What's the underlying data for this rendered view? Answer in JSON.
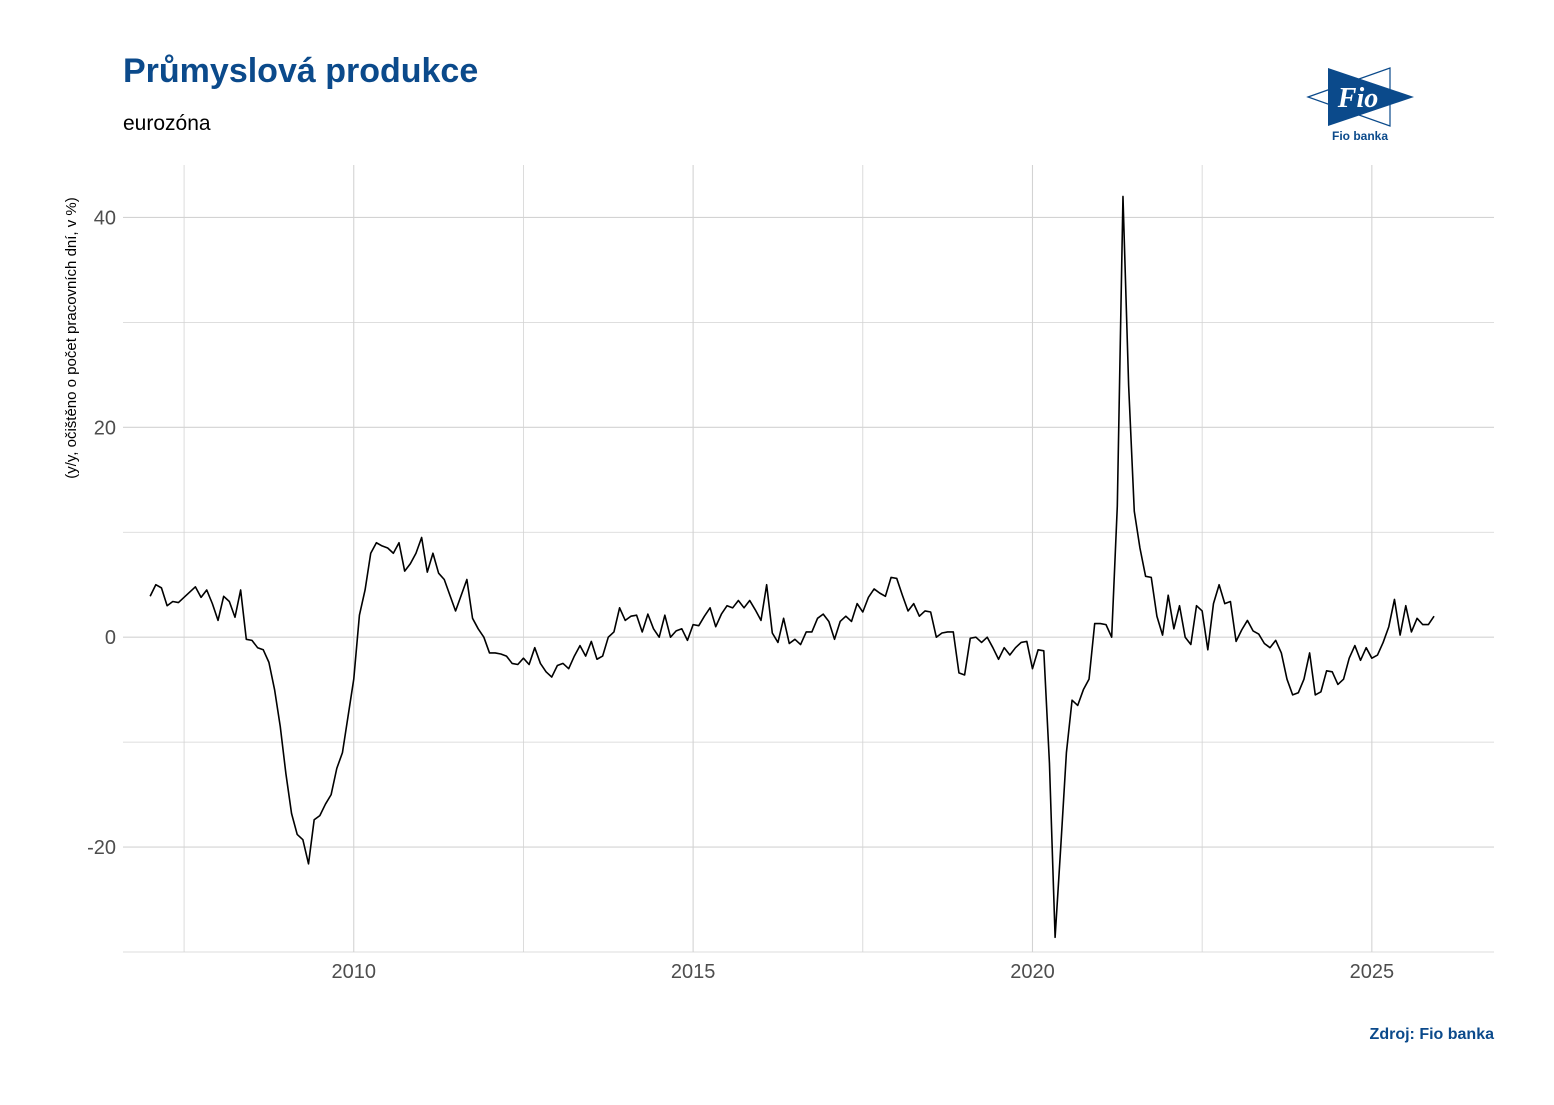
{
  "header": {
    "title": "Průmyslová produkce",
    "subtitle": "eurozóna"
  },
  "logo": {
    "mark_text": "Fio",
    "caption": "Fio banka",
    "color": "#0b4a8b"
  },
  "footer": {
    "source": "Zdroj: Fio banka"
  },
  "chart_data": {
    "type": "line",
    "title": "Průmyslová produkce",
    "subtitle": "eurozóna",
    "xlabel": "",
    "ylabel": "(y/y, očištěno o počet pracovních dní, v %)",
    "xlim": [
      2006.6,
      2026.8
    ],
    "ylim": [
      -30,
      45
    ],
    "x_ticks": [
      2010,
      2015,
      2020,
      2025
    ],
    "y_ticks": [
      -20,
      0,
      20,
      40
    ],
    "grid": true,
    "line_color": "#000000",
    "series": [
      {
        "start": "2007-01",
        "frequency": "monthly",
        "values": [
          3.9,
          5.0,
          4.7,
          3.0,
          3.4,
          3.3,
          3.8,
          4.3,
          4.8,
          3.8,
          4.5,
          3.2,
          1.6,
          3.9,
          3.4,
          1.9,
          4.5,
          -0.2,
          -0.3,
          -1.0,
          -1.2,
          -2.4,
          -5.0,
          -8.5,
          -13.0,
          -16.8,
          -18.8,
          -19.3,
          -21.6,
          -17.4,
          -17.0,
          -15.9,
          -15.0,
          -12.5,
          -11.0,
          -7.5,
          -4.0,
          2.1,
          4.5,
          8.0,
          9.0,
          8.7,
          8.5,
          8.0,
          9.0,
          6.3,
          7.0,
          8.0,
          9.5,
          6.2,
          8.0,
          6.1,
          5.5,
          4.0,
          2.5,
          4.0,
          5.5,
          1.8,
          0.8,
          0.0,
          -1.5,
          -1.5,
          -1.6,
          -1.8,
          -2.5,
          -2.6,
          -2.0,
          -2.6,
          -1.0,
          -2.5,
          -3.3,
          -3.8,
          -2.7,
          -2.5,
          -3.0,
          -1.8,
          -0.8,
          -1.8,
          -0.4,
          -2.1,
          -1.8,
          0.0,
          0.5,
          2.8,
          1.6,
          2.0,
          2.1,
          0.5,
          2.2,
          0.8,
          0.0,
          2.1,
          0.0,
          0.6,
          0.8,
          -0.3,
          1.2,
          1.1,
          2.0,
          2.8,
          1.0,
          2.2,
          3.0,
          2.8,
          3.5,
          2.8,
          3.5,
          2.6,
          1.6,
          5.0,
          0.4,
          -0.5,
          1.8,
          -0.6,
          -0.2,
          -0.7,
          0.5,
          0.5,
          1.8,
          2.2,
          1.5,
          -0.2,
          1.5,
          2.0,
          1.5,
          3.2,
          2.4,
          3.8,
          4.6,
          4.2,
          3.9,
          5.7,
          5.6,
          4.0,
          2.5,
          3.2,
          2.0,
          2.5,
          2.4,
          0.0,
          0.4,
          0.5,
          0.5,
          -3.4,
          -3.6,
          -0.1,
          0.0,
          -0.5,
          0.0,
          -1.0,
          -2.1,
          -1.0,
          -1.7,
          -1.0,
          -0.5,
          -0.4,
          -3.0,
          -1.2,
          -1.3,
          -12.0,
          -28.6,
          -20.0,
          -11.0,
          -6.0,
          -6.5,
          -5.0,
          -4.0,
          1.3,
          1.3,
          1.2,
          0.0,
          12.5,
          42.0,
          24.0,
          12.0,
          8.5,
          5.8,
          5.7,
          2.0,
          0.2,
          4.0,
          0.8,
          3.0,
          0.0,
          -0.7,
          3.0,
          2.5,
          -1.2,
          3.2,
          5.0,
          3.2,
          3.4,
          -0.4,
          0.7,
          1.6,
          0.6,
          0.3,
          -0.6,
          -1.0,
          -0.3,
          -1.5,
          -4.0,
          -5.5,
          -5.3,
          -4.0,
          -1.5,
          -5.5,
          -5.2,
          -3.2,
          -3.3,
          -4.5,
          -4.0,
          -2.0,
          -0.8,
          -2.2,
          -1.0,
          -2.0,
          -1.7,
          -0.5,
          1.0,
          3.6,
          0.2,
          3.0,
          0.5,
          1.8,
          1.2,
          1.2,
          2.0
        ]
      }
    ]
  }
}
